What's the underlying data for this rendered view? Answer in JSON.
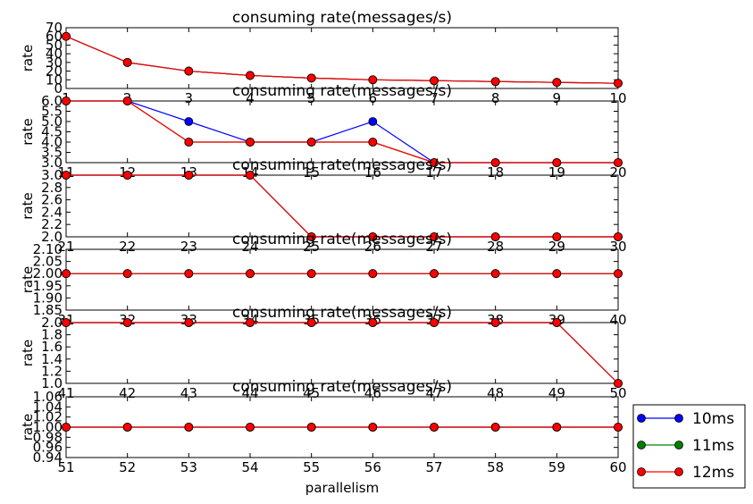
{
  "chart_data": [
    {
      "type": "line",
      "title": "consuming rate(messages/s)",
      "xlabel": "",
      "ylabel": "rate",
      "xlim": [
        1,
        10
      ],
      "ylim": [
        0,
        70
      ],
      "xticks": [
        "1",
        "2",
        "3",
        "4",
        "5",
        "6",
        "7",
        "8",
        "9",
        "10"
      ],
      "yticks": [
        "0",
        "10",
        "20",
        "30",
        "40",
        "50",
        "60",
        "70"
      ],
      "x": [
        1,
        2,
        3,
        4,
        5,
        6,
        7,
        8,
        9,
        10
      ],
      "series": [
        {
          "name": "10ms",
          "values": [
            60,
            30,
            20,
            15,
            12,
            10,
            9,
            8,
            7,
            6
          ]
        },
        {
          "name": "11ms",
          "values": [
            60,
            30,
            20,
            15,
            12,
            10,
            9,
            8,
            7,
            6
          ]
        },
        {
          "name": "12ms",
          "values": [
            60,
            30,
            20,
            15,
            12,
            10,
            9,
            8,
            7,
            6
          ]
        }
      ]
    },
    {
      "type": "line",
      "title": "consuming rate(messages/s)",
      "xlabel": "",
      "ylabel": "rate",
      "xlim": [
        11,
        20
      ],
      "ylim": [
        3.0,
        6.0
      ],
      "xticks": [
        "11",
        "12",
        "13",
        "14",
        "15",
        "16",
        "17",
        "18",
        "19",
        "20"
      ],
      "yticks": [
        "3.0",
        "3.5",
        "4.0",
        "4.5",
        "5.0",
        "5.5",
        "6.0"
      ],
      "x": [
        11,
        12,
        13,
        14,
        15,
        16,
        17,
        18,
        19,
        20
      ],
      "series": [
        {
          "name": "10ms",
          "values": [
            6,
            6,
            5,
            4,
            4,
            5,
            3,
            3,
            3,
            3
          ]
        },
        {
          "name": "11ms",
          "values": [
            6,
            6,
            4,
            4,
            4,
            4,
            3,
            3,
            3,
            3
          ]
        },
        {
          "name": "12ms",
          "values": [
            6,
            6,
            4,
            4,
            4,
            4,
            3,
            3,
            3,
            3
          ]
        }
      ]
    },
    {
      "type": "line",
      "title": "consuming rate(messages/s)",
      "xlabel": "",
      "ylabel": "rate",
      "xlim": [
        21,
        30
      ],
      "ylim": [
        2.0,
        3.0
      ],
      "xticks": [
        "21",
        "22",
        "23",
        "24",
        "25",
        "26",
        "27",
        "28",
        "29",
        "30"
      ],
      "yticks": [
        "2.0",
        "2.2",
        "2.4",
        "2.6",
        "2.8",
        "3.0"
      ],
      "x": [
        21,
        22,
        23,
        24,
        25,
        26,
        27,
        28,
        29,
        30
      ],
      "series": [
        {
          "name": "10ms",
          "values": [
            3,
            3,
            3,
            3,
            2,
            2,
            2,
            2,
            2,
            2
          ]
        },
        {
          "name": "11ms",
          "values": [
            3,
            3,
            3,
            3,
            2,
            2,
            2,
            2,
            2,
            2
          ]
        },
        {
          "name": "12ms",
          "values": [
            3,
            3,
            3,
            3,
            2,
            2,
            2,
            2,
            2,
            2
          ]
        }
      ]
    },
    {
      "type": "line",
      "title": "consuming rate(messages/s)",
      "xlabel": "",
      "ylabel": "rate",
      "xlim": [
        31,
        40
      ],
      "ylim": [
        1.85,
        2.1
      ],
      "xticks": [
        "31",
        "32",
        "33",
        "34",
        "35",
        "36",
        "37",
        "38",
        "39",
        "40"
      ],
      "yticks": [
        "1.85",
        "1.90",
        "1.95",
        "2.00",
        "2.05",
        "2.10"
      ],
      "x": [
        31,
        32,
        33,
        34,
        35,
        36,
        37,
        38,
        39,
        40
      ],
      "series": [
        {
          "name": "10ms",
          "values": [
            2,
            2,
            2,
            2,
            2,
            2,
            2,
            2,
            2,
            2
          ]
        },
        {
          "name": "11ms",
          "values": [
            2,
            2,
            2,
            2,
            2,
            2,
            2,
            2,
            2,
            2
          ]
        },
        {
          "name": "12ms",
          "values": [
            2,
            2,
            2,
            2,
            2,
            2,
            2,
            2,
            2,
            2
          ]
        }
      ]
    },
    {
      "type": "line",
      "title": "consuming rate(messages/s)",
      "xlabel": "",
      "ylabel": "rate",
      "xlim": [
        41,
        50
      ],
      "ylim": [
        1.0,
        2.0
      ],
      "xticks": [
        "41",
        "42",
        "43",
        "44",
        "45",
        "46",
        "47",
        "48",
        "49",
        "50"
      ],
      "yticks": [
        "1.0",
        "1.2",
        "1.4",
        "1.6",
        "1.8",
        "2.0"
      ],
      "x": [
        41,
        42,
        43,
        44,
        45,
        46,
        47,
        48,
        49,
        50
      ],
      "series": [
        {
          "name": "10ms",
          "values": [
            2,
            2,
            2,
            2,
            2,
            2,
            2,
            2,
            2,
            1
          ]
        },
        {
          "name": "11ms",
          "values": [
            2,
            2,
            2,
            2,
            2,
            2,
            2,
            2,
            2,
            1
          ]
        },
        {
          "name": "12ms",
          "values": [
            2,
            2,
            2,
            2,
            2,
            2,
            2,
            2,
            2,
            1
          ]
        }
      ]
    },
    {
      "type": "line",
      "title": "consuming rate(messages/s)",
      "xlabel": "parallelism",
      "ylabel": "rate",
      "xlim": [
        51,
        60
      ],
      "ylim": [
        0.94,
        1.06
      ],
      "xticks": [
        "51",
        "52",
        "53",
        "54",
        "55",
        "56",
        "57",
        "58",
        "59",
        "60"
      ],
      "yticks": [
        "0.94",
        "0.96",
        "0.98",
        "1.00",
        "1.02",
        "1.04",
        "1.06"
      ],
      "x": [
        51,
        52,
        53,
        54,
        55,
        56,
        57,
        58,
        59,
        60
      ],
      "series": [
        {
          "name": "10ms",
          "values": [
            1,
            1,
            1,
            1,
            1,
            1,
            1,
            1,
            1,
            1
          ]
        },
        {
          "name": "11ms",
          "values": [
            1,
            1,
            1,
            1,
            1,
            1,
            1,
            1,
            1,
            1
          ]
        },
        {
          "name": "12ms",
          "values": [
            1,
            1,
            1,
            1,
            1,
            1,
            1,
            1,
            1,
            1
          ]
        }
      ]
    }
  ],
  "legend": {
    "placement": "bottom-right, outside",
    "entries": [
      {
        "label": "10ms",
        "color": "#0000ff"
      },
      {
        "label": "11ms",
        "color": "#008000"
      },
      {
        "label": "12ms",
        "color": "#ff0000"
      }
    ]
  },
  "style": {
    "series_colors": [
      "#0000ff",
      "#008000",
      "#ff0000"
    ],
    "marker": "circle",
    "grid": false
  }
}
